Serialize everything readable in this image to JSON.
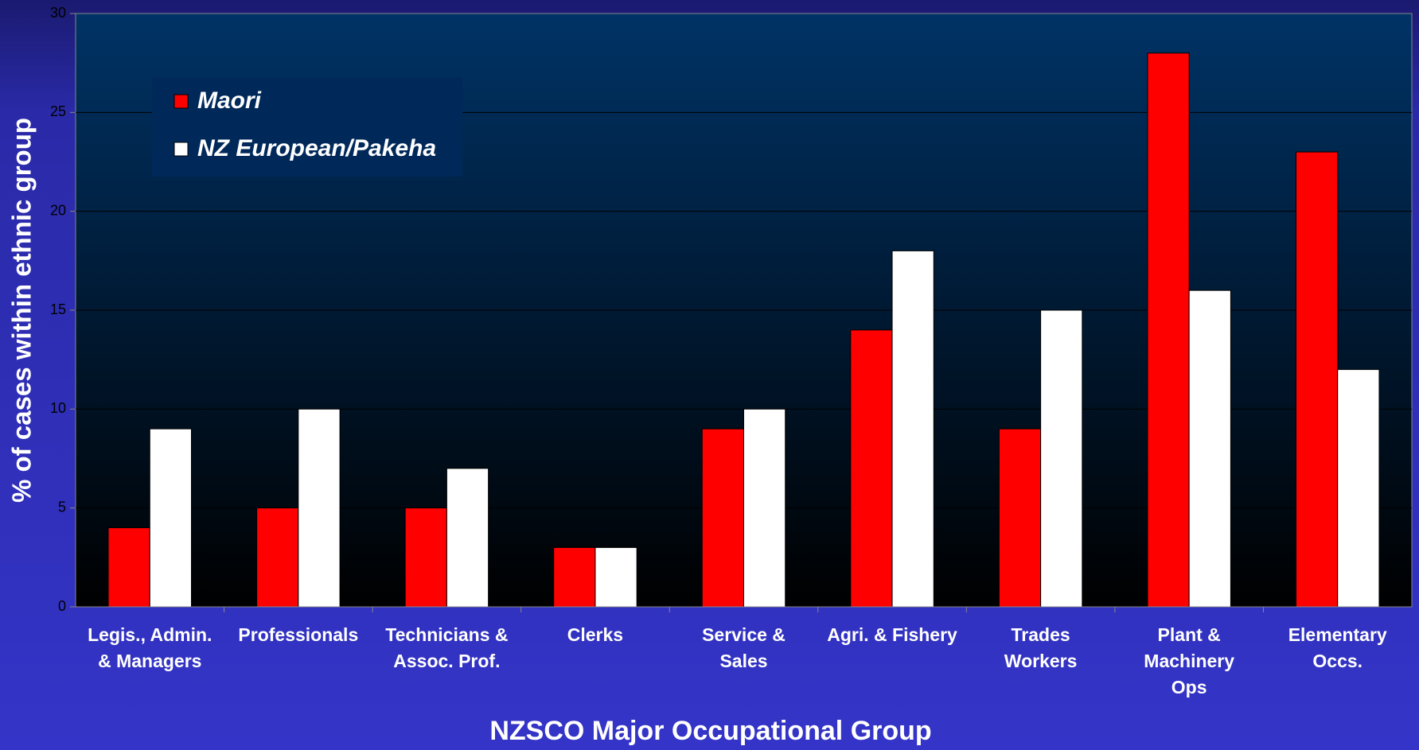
{
  "chart_data": {
    "type": "bar",
    "title": "NZSCO Major Occupational Group",
    "y_label": "% of cases within ethnic group",
    "categories": [
      "Legis., Admin.\n& Managers",
      "Professionals",
      "Technicians &\nAssoc. Prof.",
      "Clerks",
      "Service &\nSales",
      "Agri. & Fishery",
      "Trades\nWorkers",
      "Plant &\nMachinery\nOps",
      "Elementary\nOccs."
    ],
    "series": [
      {
        "name": "Maori",
        "color": "#ff0000",
        "values": [
          4,
          5,
          5,
          3,
          9,
          14,
          9,
          28,
          23
        ]
      },
      {
        "name": "NZ European/Pakeha",
        "color": "#ffffff",
        "values": [
          9,
          10,
          7,
          3,
          10,
          18,
          15,
          16,
          12
        ]
      }
    ],
    "ylim": [
      0,
      30
    ],
    "yticks": [
      0,
      5,
      10,
      15,
      20,
      25,
      30
    ],
    "grid": true,
    "legend": "top-left"
  }
}
